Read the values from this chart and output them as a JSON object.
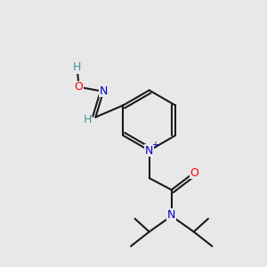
{
  "background_color": "#e8e8e8",
  "atom_colors": {
    "C": "#000000",
    "N": "#0000cd",
    "N+": "#0000cd",
    "O": "#ff0000",
    "H_teal": "#4a9090"
  },
  "bond_color": "#1a1a1a",
  "bond_width": 1.5,
  "figsize": [
    3.0,
    3.0
  ],
  "dpi": 100
}
